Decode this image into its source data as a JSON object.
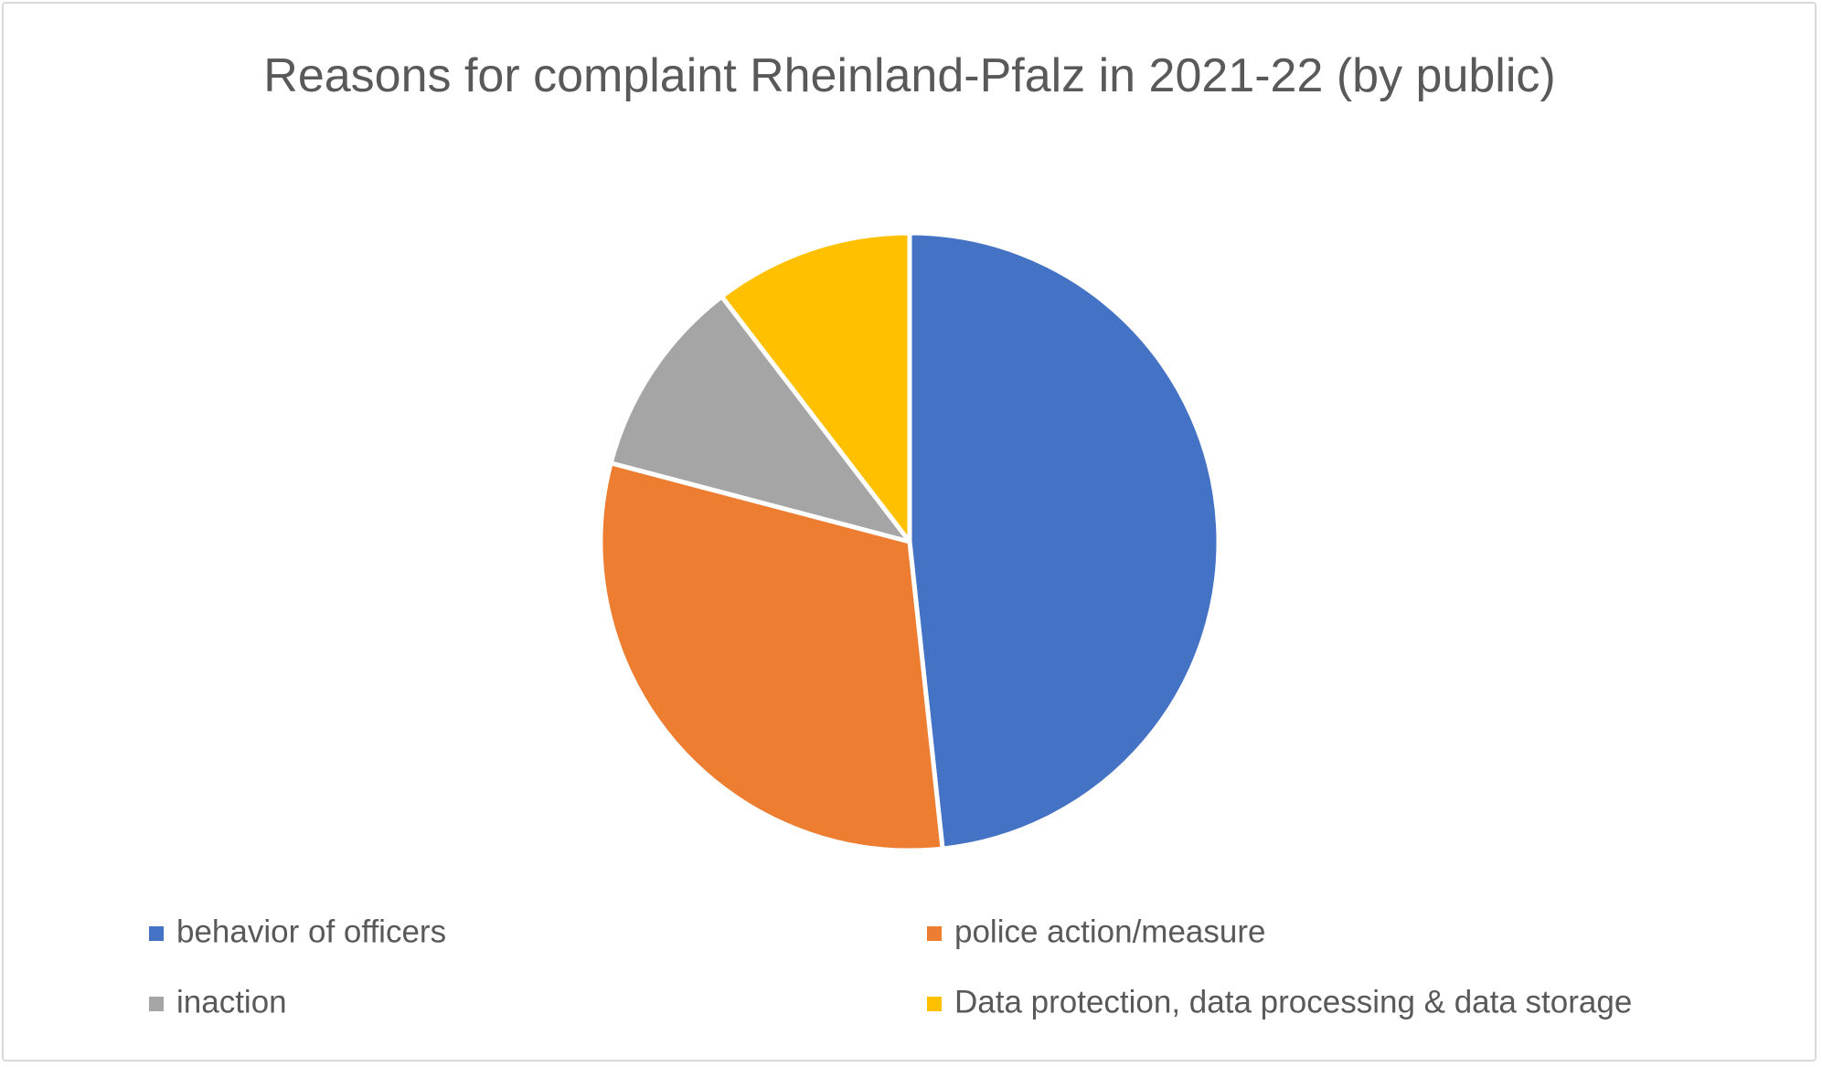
{
  "chart_data": {
    "type": "pie",
    "title": "Reasons for complaint Rheinland-Pfalz in 2021-22 (by public)",
    "series": [
      {
        "name": "behavior of officers",
        "color": "#4472c4",
        "values": [
          48.3
        ]
      },
      {
        "name": "police action/measure",
        "color": "#ed7d31",
        "values": [
          30.8
        ]
      },
      {
        "name": "inaction",
        "color": "#a5a5a5",
        "values": [
          10.5
        ]
      },
      {
        "name": "Data protection, data processing & data storage",
        "color": "#ffc000",
        "values": [
          10.4
        ]
      }
    ],
    "legend": "bottom"
  }
}
